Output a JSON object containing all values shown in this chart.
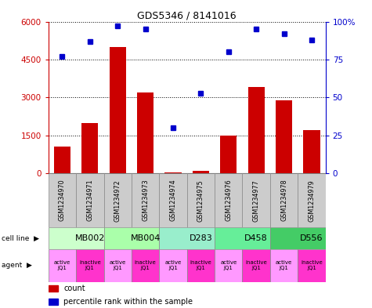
{
  "title": "GDS5346 / 8141016",
  "samples": [
    "GSM1234970",
    "GSM1234971",
    "GSM1234972",
    "GSM1234973",
    "GSM1234974",
    "GSM1234975",
    "GSM1234976",
    "GSM1234977",
    "GSM1234978",
    "GSM1234979"
  ],
  "counts": [
    1050,
    2000,
    5000,
    3200,
    40,
    90,
    1500,
    3400,
    2900,
    1700
  ],
  "percentiles": [
    77,
    87,
    97,
    95,
    30,
    53,
    80,
    95,
    92,
    88
  ],
  "ylim_left": [
    0,
    6000
  ],
  "ylim_right": [
    0,
    100
  ],
  "yticks_left": [
    0,
    1500,
    3000,
    4500,
    6000
  ],
  "yticks_right": [
    0,
    25,
    50,
    75,
    100
  ],
  "bar_color": "#cc0000",
  "dot_color": "#0000cc",
  "cell_lines": [
    {
      "label": "MB002",
      "start": 0,
      "end": 2,
      "color": "#ccffcc"
    },
    {
      "label": "MB004",
      "start": 2,
      "end": 4,
      "color": "#aaffaa"
    },
    {
      "label": "D283",
      "start": 4,
      "end": 6,
      "color": "#99eecc"
    },
    {
      "label": "D458",
      "start": 6,
      "end": 8,
      "color": "#66ee99"
    },
    {
      "label": "D556",
      "start": 8,
      "end": 10,
      "color": "#44cc66"
    }
  ],
  "agent_active_color": "#ff99ff",
  "agent_inactive_color": "#ff33cc",
  "sample_box_color": "#cccccc",
  "bg_color": "#ffffff"
}
